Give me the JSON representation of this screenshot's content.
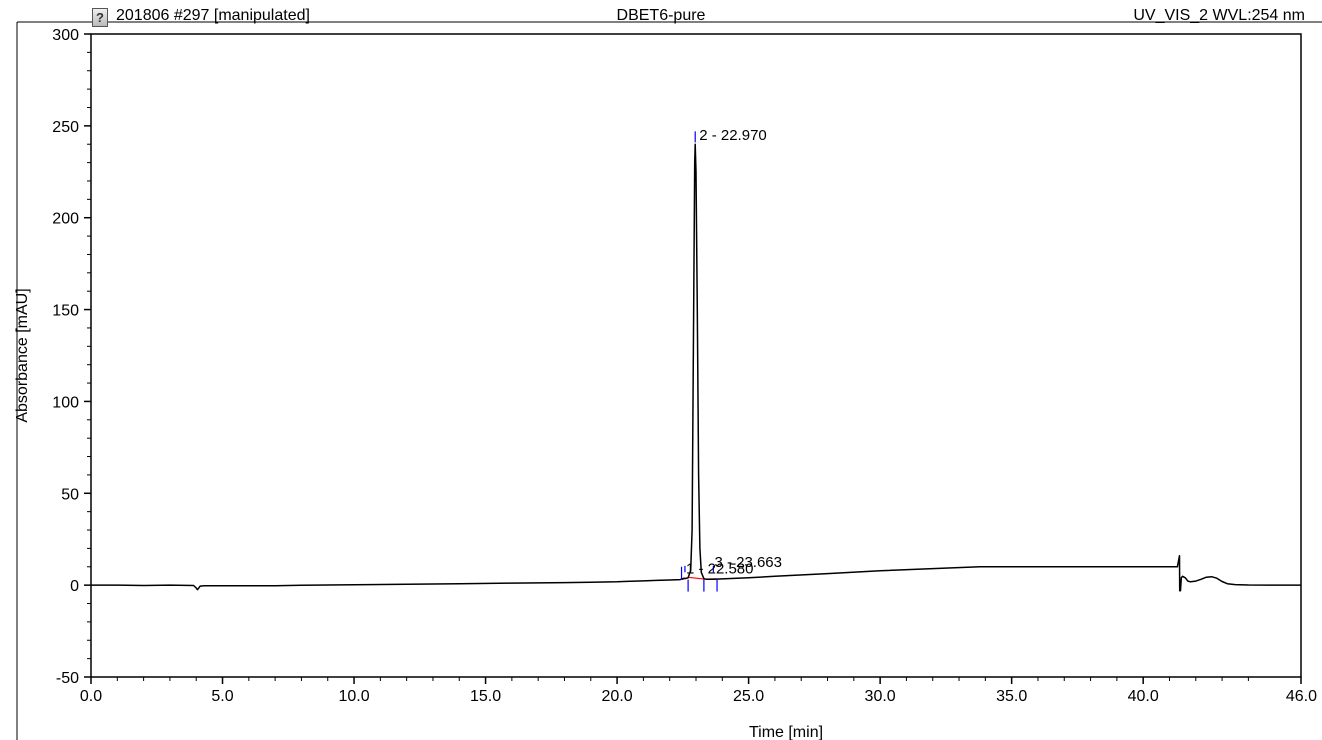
{
  "header": {
    "run_label": "201806 #297 [manipulated]",
    "sample_name": "DBET6-pure",
    "detector": "UV_VIS_2 WVL:254 nm",
    "icon": "question-doc-icon"
  },
  "colors": {
    "trace": "#000000",
    "baseline": "#ff0000",
    "peak_markers": "#0000ff",
    "axes": "#000000"
  },
  "chart_data": {
    "type": "line",
    "title": "DBET6-pure",
    "xlabel": "Time [min]",
    "ylabel": "Absorbance [mAU]",
    "xlim": [
      0,
      46
    ],
    "ylim": [
      -50,
      300
    ],
    "xticks": [
      "0.0",
      "5.0",
      "10.0",
      "15.0",
      "20.0",
      "25.0",
      "30.0",
      "35.0",
      "40.0",
      "46.0"
    ],
    "yticks": [
      "-50",
      "0",
      "50",
      "100",
      "150",
      "200",
      "250",
      "300"
    ],
    "grid": false,
    "series": [
      {
        "x": [
          0,
          1,
          2,
          3,
          3.9,
          4.0,
          4.05,
          4.15,
          4.3,
          5,
          6,
          7,
          8,
          10,
          12,
          14,
          16,
          18,
          19,
          20,
          20.5,
          21,
          21.5,
          22,
          22.4,
          22.55,
          22.6,
          22.7,
          22.8,
          22.85,
          22.9,
          22.95,
          22.97,
          23.0,
          23.05,
          23.1,
          23.15,
          23.2,
          23.3,
          23.4,
          23.6,
          23.8,
          24,
          25,
          26,
          28,
          30,
          32,
          33.8,
          34,
          36,
          38,
          40,
          41.3,
          41.38,
          41.39,
          41.42,
          41.45,
          41.5,
          41.6,
          41.7,
          41.8,
          42,
          42.2,
          42.4,
          42.6,
          42.8,
          43.0,
          43.2,
          43.5,
          44,
          45,
          46
        ],
        "y": [
          0,
          0,
          -0.2,
          0,
          -0.2,
          -1.5,
          -2.5,
          -0.5,
          -0.3,
          -0.3,
          -0.3,
          -0.3,
          -0.1,
          0.2,
          0.5,
          0.8,
          1.1,
          1.4,
          1.6,
          1.8,
          2.1,
          2.3,
          2.6,
          2.8,
          3.0,
          3.8,
          3.6,
          4,
          8,
          30,
          130,
          230,
          240,
          225,
          150,
          60,
          20,
          7,
          3.5,
          3.2,
          3.2,
          3.3,
          3.4,
          4,
          4.8,
          6.3,
          7.8,
          9.0,
          10,
          10,
          10,
          10,
          10,
          10,
          16,
          -3,
          -3,
          4,
          4.8,
          4,
          2.2,
          1.8,
          2.2,
          3.2,
          4.3,
          4.6,
          3.8,
          2,
          0.8,
          0.3,
          0.1,
          0,
          0
        ]
      }
    ],
    "baselines": [
      {
        "x": [
          22.45,
          22.75
        ],
        "y": [
          3.0,
          4.2
        ]
      },
      {
        "x": [
          22.75,
          23.3
        ],
        "y": [
          4.2,
          3.3
        ]
      },
      {
        "x": [
          23.3,
          23.8
        ],
        "y": [
          3.3,
          3.4
        ]
      }
    ],
    "peaks": [
      {
        "number": 1,
        "label": "1 - 22.580",
        "rt": 22.58
      },
      {
        "number": 2,
        "label": "2 - 22.970",
        "rt": 22.97
      },
      {
        "number": 3,
        "label": "3 - 23.663",
        "rt": 23.663
      }
    ]
  }
}
